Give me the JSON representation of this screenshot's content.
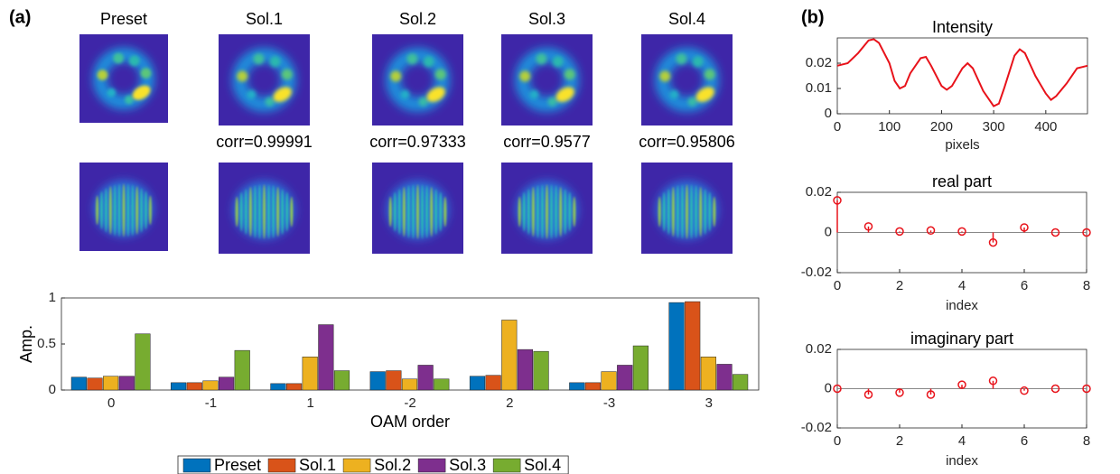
{
  "panel_labels": [
    "(a)",
    "(b)"
  ],
  "image_titles": [
    "Preset",
    "Sol.1",
    "Sol.2",
    "Sol.3",
    "Sol.4"
  ],
  "corr_labels": [
    "corr=0.99991",
    "corr=0.97333",
    "corr=0.9577",
    "corr=0.95806"
  ],
  "chart_data": [
    {
      "type": "bar",
      "categories": [
        "0",
        "-1",
        "1",
        "-2",
        "2",
        "-3",
        "3"
      ],
      "series": [
        {
          "name": "Preset",
          "color": "#0072bd",
          "values": [
            0.14,
            0.08,
            0.07,
            0.2,
            0.15,
            0.08,
            0.95
          ]
        },
        {
          "name": "Sol.1",
          "color": "#d95319",
          "values": [
            0.13,
            0.08,
            0.07,
            0.21,
            0.16,
            0.08,
            0.96
          ]
        },
        {
          "name": "Sol.2",
          "color": "#edb120",
          "values": [
            0.15,
            0.1,
            0.36,
            0.12,
            0.76,
            0.2,
            0.36
          ]
        },
        {
          "name": "Sol.3",
          "color": "#7e2f8e",
          "values": [
            0.15,
            0.14,
            0.71,
            0.27,
            0.44,
            0.27,
            0.28
          ]
        },
        {
          "name": "Sol.4",
          "color": "#77ac30",
          "values": [
            0.61,
            0.43,
            0.21,
            0.12,
            0.42,
            0.48,
            0.17
          ]
        }
      ],
      "ylim": [
        0,
        1
      ],
      "yticks": [
        0,
        0.5,
        1
      ],
      "ylabel": "Amp.",
      "xlabel": "OAM order"
    },
    {
      "type": "line",
      "title": "Intensity",
      "xlabel": "pixels",
      "color": "#e8121a",
      "x": [
        0,
        20,
        40,
        60,
        70,
        80,
        100,
        110,
        120,
        130,
        140,
        160,
        170,
        180,
        200,
        210,
        220,
        240,
        250,
        260,
        280,
        300,
        310,
        320,
        340,
        350,
        360,
        380,
        400,
        410,
        420,
        440,
        460,
        480
      ],
      "values": [
        0.019,
        0.02,
        0.024,
        0.029,
        0.0295,
        0.028,
        0.02,
        0.013,
        0.01,
        0.011,
        0.016,
        0.022,
        0.0225,
        0.019,
        0.011,
        0.0095,
        0.011,
        0.018,
        0.02,
        0.018,
        0.009,
        0.003,
        0.004,
        0.01,
        0.023,
        0.0255,
        0.024,
        0.015,
        0.008,
        0.0055,
        0.007,
        0.012,
        0.018,
        0.019
      ],
      "xlim": [
        0,
        480
      ],
      "xticks": [
        0,
        100,
        200,
        300,
        400
      ],
      "ylim": [
        0,
        0.03
      ],
      "yticks": [
        0,
        0.01,
        0.02
      ]
    },
    {
      "type": "stem",
      "title": "real part",
      "xlabel": "index",
      "color": "#e8121a",
      "x": [
        0,
        1,
        2,
        3,
        4,
        5,
        6,
        7,
        8
      ],
      "values": [
        0.016,
        0.003,
        0.0005,
        0.001,
        0.0005,
        -0.005,
        0.0025,
        0,
        0
      ],
      "xlim": [
        0,
        8
      ],
      "xticks": [
        0,
        2,
        4,
        6,
        8
      ],
      "ylim": [
        -0.02,
        0.02
      ],
      "yticks": [
        -0.02,
        0,
        0.02
      ]
    },
    {
      "type": "stem",
      "title": "imaginary part",
      "xlabel": "index",
      "color": "#e8121a",
      "x": [
        0,
        1,
        2,
        3,
        4,
        5,
        6,
        7,
        8
      ],
      "values": [
        0,
        -0.003,
        -0.002,
        -0.003,
        0.002,
        0.004,
        -0.001,
        0,
        0
      ],
      "xlim": [
        0,
        8
      ],
      "xticks": [
        0,
        2,
        4,
        6,
        8
      ],
      "ylim": [
        -0.02,
        0.02
      ],
      "yticks": [
        -0.02,
        0,
        0.02
      ]
    }
  ]
}
